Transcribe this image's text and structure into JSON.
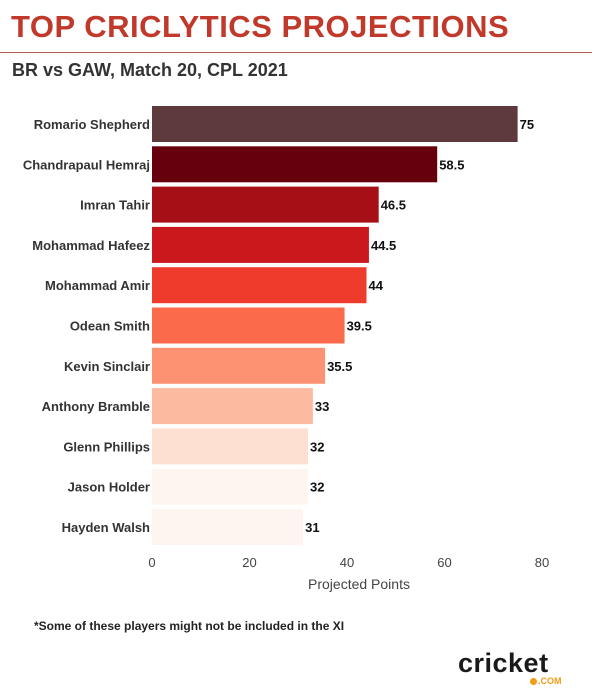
{
  "header": {
    "title": "TOP CRICLYTICS PROJECTIONS",
    "subtitle": "BR vs GAW, Match 20, CPL 2021"
  },
  "chart_data": {
    "type": "bar",
    "orientation": "horizontal",
    "categories": [
      "Romario Shepherd",
      "Chandrapaul Hemraj",
      "Imran Tahir",
      "Mohammad Hafeez",
      "Mohammad Amir",
      "Odean Smith",
      "Kevin Sinclair",
      "Anthony Bramble",
      "Glenn Phillips",
      "Jason Holder",
      "Hayden Walsh"
    ],
    "values": [
      75,
      58.5,
      46.5,
      44.5,
      44,
      39.5,
      35.5,
      33,
      32,
      32,
      31
    ],
    "value_labels": [
      "75",
      "58.5",
      "46.5",
      "44.5",
      "44",
      "39.5",
      "35.5",
      "33",
      "32",
      "32",
      "31"
    ],
    "bar_colors": [
      "#5e3a3c",
      "#67000d",
      "#a50f15",
      "#cb181d",
      "#ef3b2c",
      "#fb6a4a",
      "#fc9272",
      "#fcbba1",
      "#fee0d2",
      "#fff5f0",
      "#fff5f0"
    ],
    "xlabel": "Projected Points",
    "ylabel": "",
    "xlim": [
      0,
      80
    ],
    "xticks": [
      "0",
      "20",
      "40",
      "60",
      "80"
    ],
    "grid": false
  },
  "footnote": "*Some of these players might not be included in the XI",
  "logo": {
    "word": "cricket",
    "suffix": ".COM",
    "accent_color": "#f39c12"
  }
}
